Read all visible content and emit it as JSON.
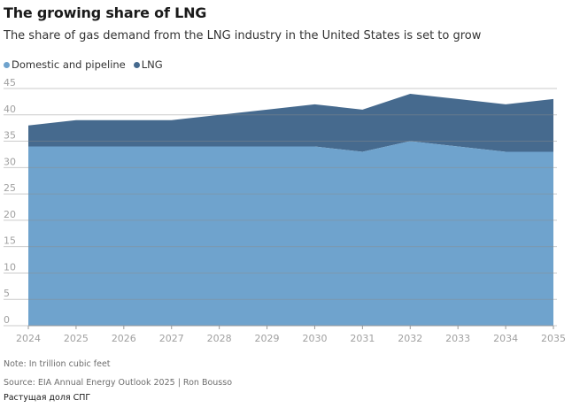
{
  "chart_data": {
    "type": "area",
    "stacked": true,
    "title": "The growing share of LNG",
    "subtitle": "The share of gas demand from the LNG industry in the United States is set to grow",
    "x": [
      "2024",
      "2025",
      "2026",
      "2027",
      "2028",
      "2029",
      "2030",
      "2031",
      "2032",
      "2033",
      "2034",
      "2035"
    ],
    "series": [
      {
        "name": "Domestic and pipeline",
        "color": "#6fa3cd",
        "values": [
          34,
          34,
          34,
          34,
          34,
          34,
          34,
          33,
          35,
          34,
          33,
          33
        ]
      },
      {
        "name": "LNG",
        "color": "#466a8e",
        "values": [
          4,
          5,
          5,
          5,
          6,
          7,
          8,
          8,
          9,
          9,
          9,
          10
        ]
      }
    ],
    "ylim": [
      0,
      45
    ],
    "yticks": [
      0,
      5,
      10,
      15,
      20,
      25,
      30,
      35,
      40,
      45
    ],
    "grid": true,
    "legend_position": "top-left"
  },
  "notes": {
    "units": "Note: In trillion cubic feet",
    "source": "Source: EIA Annual Energy Outlook 2025 | Ron Bousso"
  },
  "caption": "Растущая доля СПГ"
}
